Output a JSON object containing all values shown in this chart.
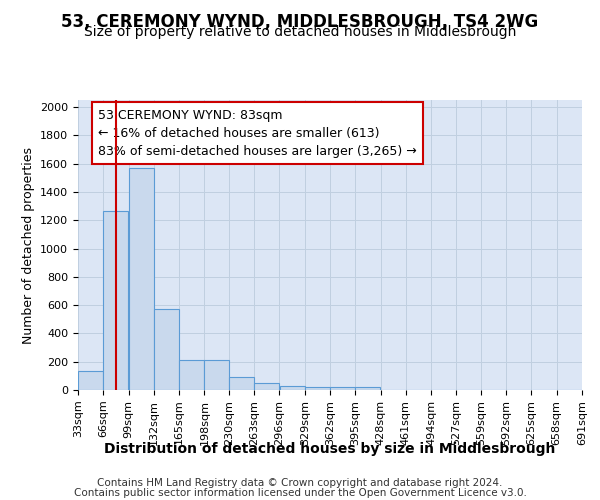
{
  "title": "53, CEREMONY WYND, MIDDLESBROUGH, TS4 2WG",
  "subtitle": "Size of property relative to detached houses in Middlesbrough",
  "xlabel": "Distribution of detached houses by size in Middlesbrough",
  "ylabel": "Number of detached properties",
  "bar_lefts": [
    33,
    66,
    99,
    132,
    165,
    198,
    230,
    263,
    296,
    329,
    362,
    395,
    428,
    461,
    494,
    527,
    559,
    592,
    625,
    658
  ],
  "bar_rights": [
    66,
    99,
    132,
    165,
    198,
    230,
    263,
    296,
    329,
    362,
    395,
    428,
    461,
    494,
    527,
    559,
    592,
    625,
    658,
    691
  ],
  "bar_heights": [
    135,
    1265,
    1570,
    570,
    215,
    215,
    95,
    48,
    25,
    20,
    20,
    20,
    0,
    0,
    0,
    0,
    0,
    0,
    0,
    0
  ],
  "bar_color": "#c9d9ed",
  "bar_edgecolor": "#5b9bd5",
  "grid_color": "#c0cfe0",
  "bg_color": "#dce6f5",
  "red_line_x": 83,
  "annotation_text": "53 CEREMONY WYND: 83sqm\n← 16% of detached houses are smaller (613)\n83% of semi-detached houses are larger (3,265) →",
  "annotation_box_edgecolor": "#cc0000",
  "annotation_box_facecolor": "#ffffff",
  "ylim": [
    0,
    2050
  ],
  "yticks": [
    0,
    200,
    400,
    600,
    800,
    1000,
    1200,
    1400,
    1600,
    1800,
    2000
  ],
  "xlim_left": 33,
  "xlim_right": 691,
  "tick_labels": [
    "33sqm",
    "66sqm",
    "99sqm",
    "132sqm",
    "165sqm",
    "198sqm",
    "230sqm",
    "263sqm",
    "296sqm",
    "329sqm",
    "362sqm",
    "395sqm",
    "428sqm",
    "461sqm",
    "494sqm",
    "527sqm",
    "559sqm",
    "592sqm",
    "625sqm",
    "658sqm",
    "691sqm"
  ],
  "footer_line1": "Contains HM Land Registry data © Crown copyright and database right 2024.",
  "footer_line2": "Contains public sector information licensed under the Open Government Licence v3.0.",
  "title_fontsize": 12,
  "subtitle_fontsize": 10,
  "xlabel_fontsize": 10,
  "ylabel_fontsize": 9,
  "tick_fontsize": 8,
  "annotation_fontsize": 9,
  "footer_fontsize": 7.5
}
